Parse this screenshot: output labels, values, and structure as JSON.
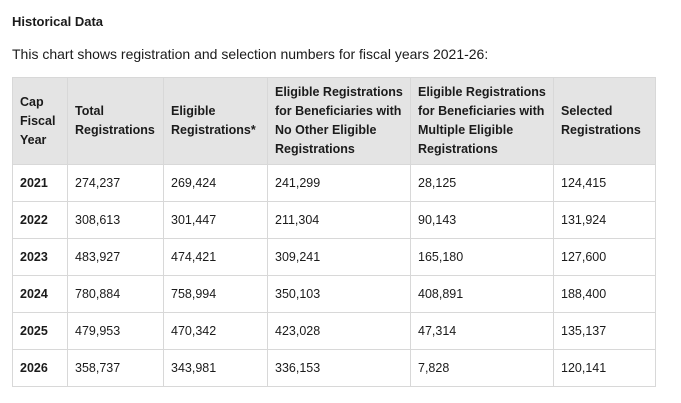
{
  "heading": "Historical Data",
  "intro": "This chart shows registration and selection numbers for fiscal years 2021-26:",
  "table": {
    "headers": [
      [
        "Cap",
        "Fiscal",
        "Year"
      ],
      [
        "Total",
        "Registrations"
      ],
      [
        "Eligible",
        "Registrations*"
      ],
      [
        "Eligible Registrations",
        "for Beneficiaries with",
        "No Other Eligible",
        "Registrations"
      ],
      [
        "Eligible Registrations",
        "for Beneficiaries with",
        "Multiple Eligible",
        "Registrations"
      ],
      [
        "Selected",
        "Registrations"
      ]
    ],
    "rows": [
      [
        "2021",
        "274,237",
        "269,424",
        "241,299",
        "28,125",
        "124,415"
      ],
      [
        "2022",
        "308,613",
        "301,447",
        "211,304",
        "90,143",
        "131,924"
      ],
      [
        "2023",
        "483,927",
        "474,421",
        "309,241",
        "165,180",
        "127,600"
      ],
      [
        "2024",
        "780,884",
        "758,994",
        "350,103",
        "408,891",
        "188,400"
      ],
      [
        "2025",
        "479,953",
        "470,342",
        "423,028",
        "47,314",
        "135,137"
      ],
      [
        "2026",
        "358,737",
        "343,981",
        "336,153",
        "7,828",
        "120,141"
      ]
    ]
  }
}
